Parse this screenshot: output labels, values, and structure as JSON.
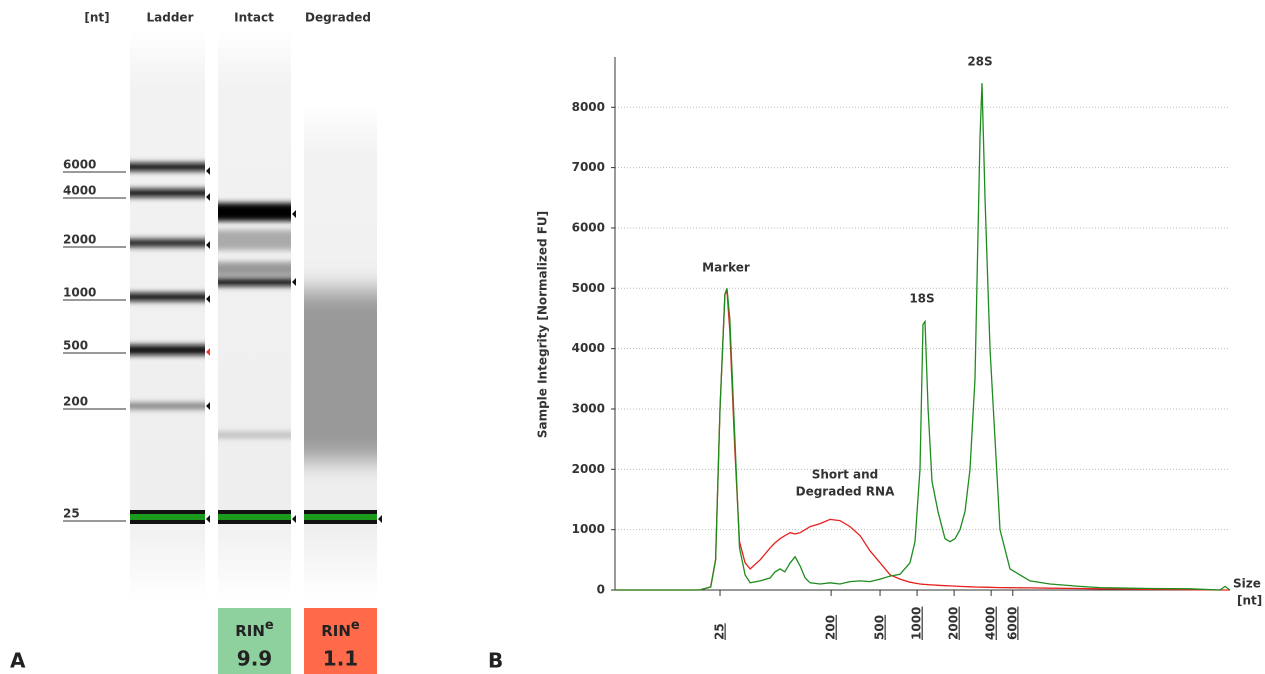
{
  "panels": [
    "A",
    "B"
  ],
  "gel": {
    "header": [
      "[nt]",
      "Ladder",
      "Intact",
      "Degraded"
    ],
    "size_labels": [
      6000,
      4000,
      2000,
      1000,
      500,
      200,
      25
    ],
    "rin": [
      {
        "label": "RIN",
        "superscript": "e",
        "value": 9.9
      },
      {
        "label": "RIN",
        "superscript": "e",
        "value": 1.1
      }
    ]
  },
  "chart_data": {
    "type": "line",
    "ylabel": "Sample Integrity [Normalized FU]",
    "xlabel": [
      "Size",
      "[nt]"
    ],
    "log_x": true,
    "grid": true,
    "x": [
      3.5,
      17,
      21,
      23,
      25,
      27.4,
      28.5,
      30,
      33,
      36,
      40,
      44,
      53,
      64,
      70,
      77,
      84,
      93,
      102,
      112,
      123,
      135,
      163,
      196,
      236,
      285,
      344,
      414,
      500,
      603,
      727,
      876,
      962,
      1057,
      1118,
      1160,
      1228,
      1323,
      1480,
      1688,
      1853,
      2035,
      2235,
      2454,
      2695,
      2960,
      3250,
      3373,
      3568,
      3918,
      4303,
      4725,
      5698,
      6870,
      8283,
      12045,
      21125,
      30712,
      53850,
      78325,
      165575,
      290350,
      318875,
      350000
    ],
    "series": [
      {
        "name": "Intact",
        "color": "#1e8c1e",
        "values": [
          0,
          0,
          50,
          500,
          3000,
          4900,
          5000,
          4500,
          2500,
          700,
          250,
          120,
          150,
          200,
          300,
          350,
          300,
          450,
          550,
          400,
          200,
          120,
          100,
          120,
          100,
          140,
          150,
          140,
          180,
          230,
          260,
          450,
          800,
          2000,
          4400,
          4450,
          3000,
          1800,
          1300,
          850,
          800,
          850,
          1000,
          1300,
          2000,
          3500,
          7500,
          8400,
          6500,
          4000,
          2500,
          1000,
          350,
          250,
          150,
          100,
          60,
          40,
          30,
          25,
          20,
          0,
          60,
          0
        ]
      },
      {
        "name": "Degraded",
        "color": "#e8201e",
        "values": [
          0,
          0,
          50,
          500,
          3000,
          4900,
          4950,
          4300,
          2300,
          800,
          450,
          350,
          500,
          700,
          780,
          850,
          900,
          950,
          930,
          950,
          1000,
          1050,
          1100,
          1170,
          1150,
          1050,
          900,
          650,
          450,
          250,
          180,
          130,
          115,
          100,
          95,
          92,
          88,
          84,
          78,
          72,
          68,
          64,
          60,
          56,
          53,
          50,
          48,
          47,
          46,
          44,
          42,
          40,
          38,
          36,
          34,
          30,
          25,
          20,
          15,
          10,
          5,
          0,
          0,
          0
        ]
      }
    ],
    "xlim": [
      3.5,
      350000
    ],
    "xticks": [
      25,
      200,
      500,
      1000,
      2000,
      4000,
      6000
    ],
    "ylim": [
      0,
      8800
    ],
    "yticks": [
      0,
      1000,
      2000,
      3000,
      4000,
      5000,
      6000,
      7000,
      8000
    ],
    "annotations": [
      "Marker",
      [
        "Short and",
        "Degraded RNA"
      ],
      "18S",
      "28S"
    ]
  }
}
